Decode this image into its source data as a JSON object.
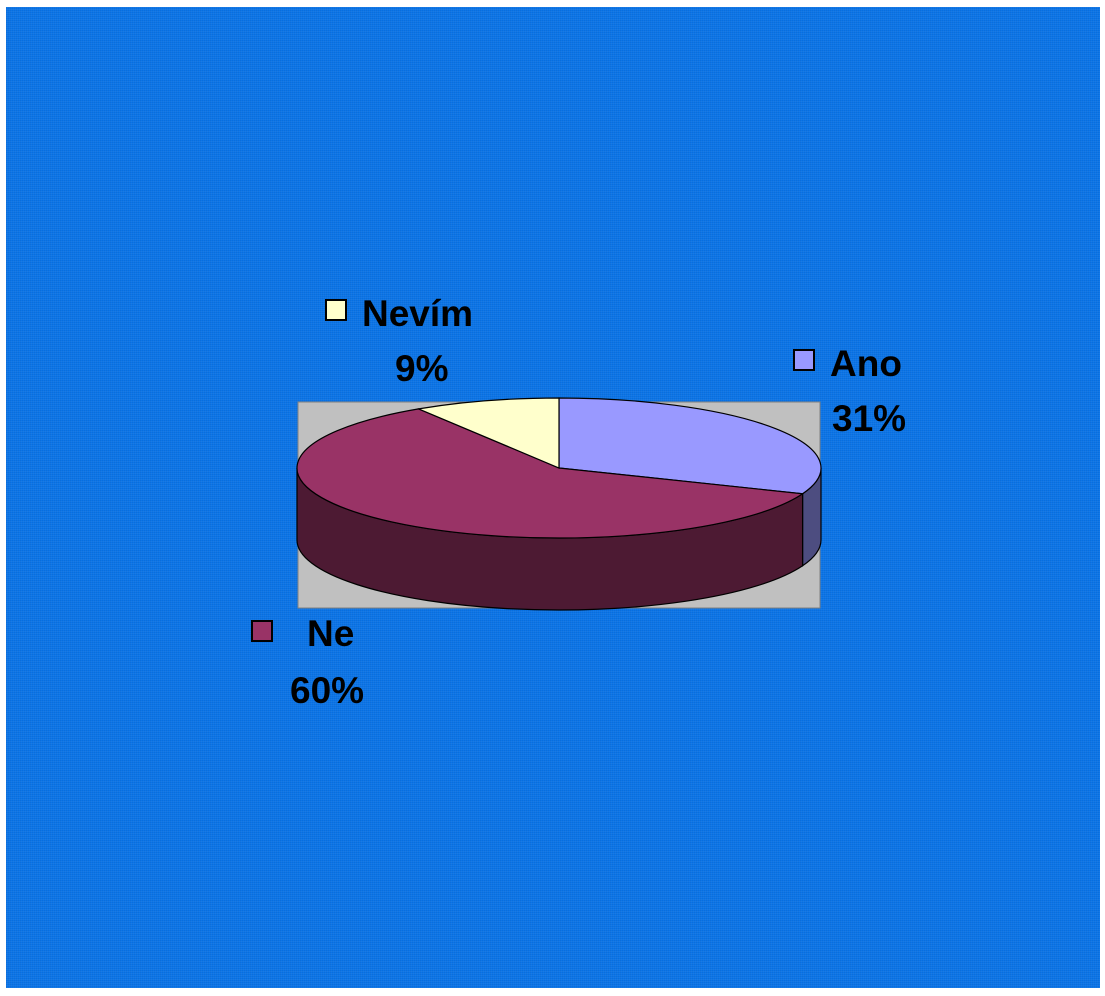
{
  "chart_data": {
    "type": "pie",
    "style": "3d",
    "slices": [
      {
        "label": "Ano",
        "value": 31,
        "value_label": "31%",
        "color": "#9999ff"
      },
      {
        "label": "Ne",
        "value": 60,
        "value_label": "60%",
        "color": "#993366"
      },
      {
        "label": "Nevím",
        "value": 9,
        "value_label": "9%",
        "color": "#ffffcc"
      }
    ],
    "plot_area_color": "#c0c0c0",
    "background_color": "#0a74e8"
  }
}
